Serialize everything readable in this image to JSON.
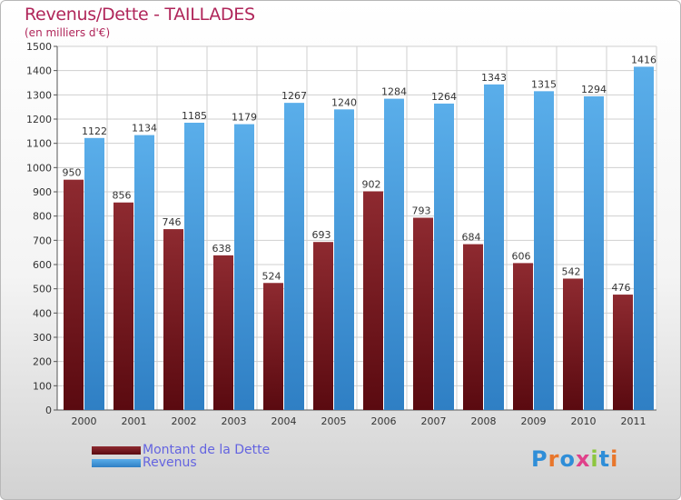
{
  "title": "Revenus/Dette - TAILLADES",
  "subtitle": "(en milliers d'€)",
  "logo": {
    "text": "Proxiti",
    "colors": [
      "#2f8ed8",
      "#e8762b",
      "#2f8ed8",
      "#e0418a",
      "#8dc63f",
      "#2f8ed8",
      "#e8762b"
    ]
  },
  "colors": {
    "dette": "#7a1c22",
    "revenus": "#4a9fe0",
    "title": "#b0265a",
    "legend_text": "#6464e0"
  },
  "chart_data": {
    "type": "bar",
    "title": "Revenus/Dette - TAILLADES",
    "subtitle": "(en milliers d'€)",
    "categories": [
      "2000",
      "2001",
      "2002",
      "2003",
      "2004",
      "2005",
      "2006",
      "2007",
      "2008",
      "2009",
      "2010",
      "2011"
    ],
    "series": [
      {
        "name": "Montant de la Dette",
        "values": [
          950,
          856,
          746,
          638,
          524,
          693,
          902,
          793,
          684,
          606,
          542,
          476
        ]
      },
      {
        "name": "Revenus",
        "values": [
          1122,
          1134,
          1185,
          1179,
          1267,
          1240,
          1284,
          1264,
          1343,
          1315,
          1294,
          1416
        ]
      }
    ],
    "ylim": [
      0,
      1500
    ],
    "yticks": [
      0,
      100,
      200,
      300,
      400,
      500,
      600,
      700,
      800,
      900,
      1000,
      1100,
      1200,
      1300,
      1400,
      1500
    ],
    "grid": true,
    "legend": "bottom-left"
  }
}
